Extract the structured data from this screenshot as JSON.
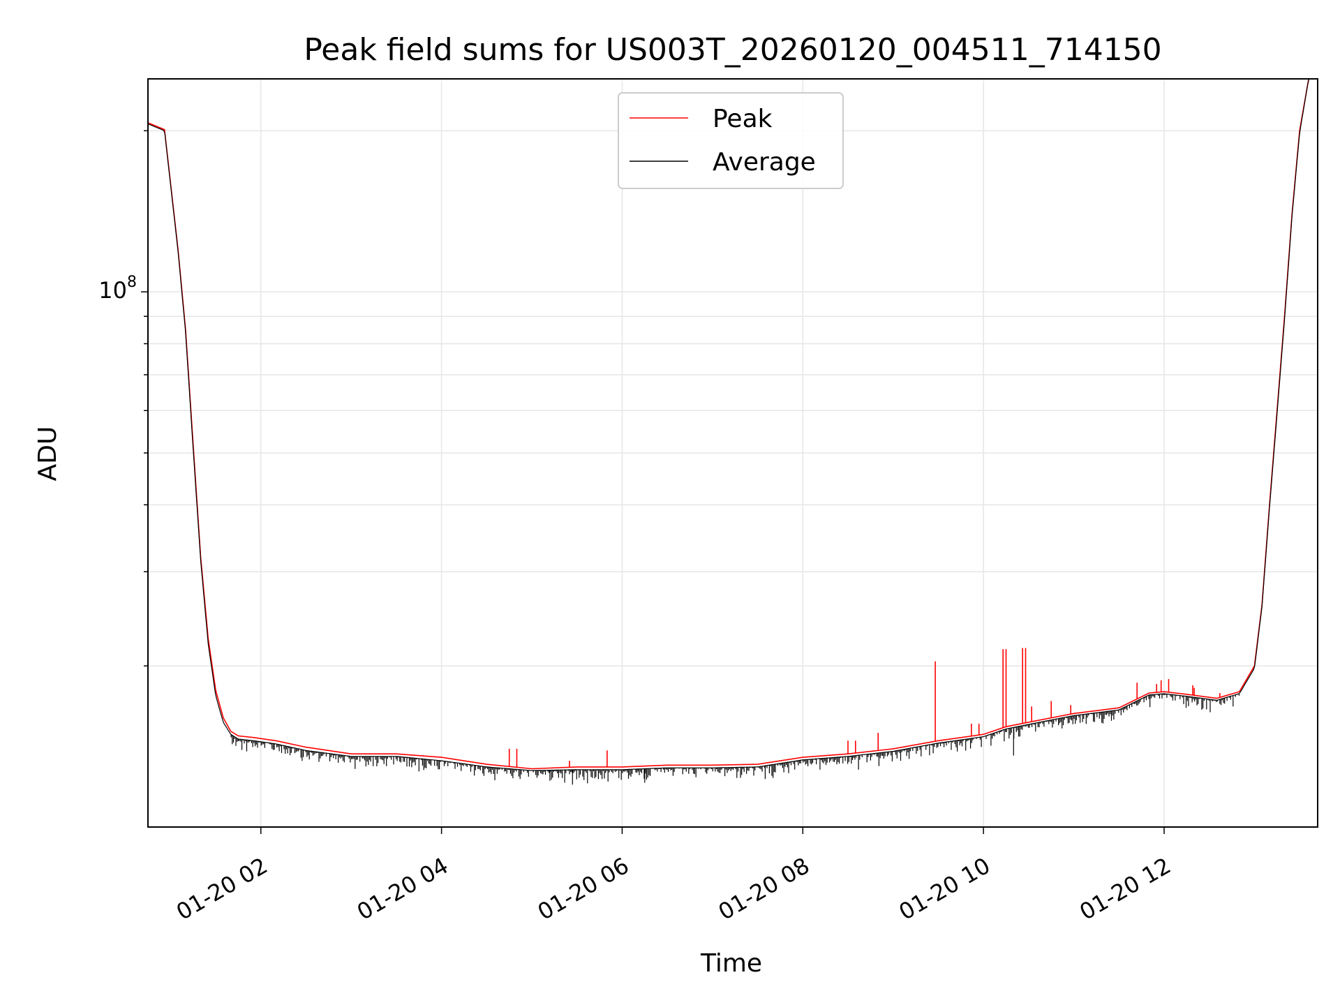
{
  "chart_data": {
    "type": "line",
    "title": "Peak field sums for US003T_20260120_004511_714150",
    "xlabel": "Time",
    "ylabel": "ADU",
    "x_scale": "time",
    "y_scale": "log",
    "xlim": [
      "2026-01-20 00:45",
      "2026-01-20 13:42"
    ],
    "ylim": [
      10000000,
      250000000
    ],
    "x_ticks": [
      "2026-01-20 02:00",
      "2026-01-20 04:00",
      "2026-01-20 06:00",
      "2026-01-20 08:00",
      "2026-01-20 10:00",
      "2026-01-20 12:00"
    ],
    "x_tick_labels": [
      "01-20 02",
      "01-20 04",
      "01-20 06",
      "01-20 08",
      "01-20 10",
      "01-20 12"
    ],
    "y_major_ticks": [
      100000000
    ],
    "y_major_tick_label": {
      "base": "10",
      "exponent": "8"
    },
    "y_minor_ticks": [
      20000000,
      30000000,
      40000000,
      50000000,
      60000000,
      70000000,
      80000000,
      90000000,
      200000000
    ],
    "grid": true,
    "legend_position": "upper center",
    "series": [
      {
        "name": "Peak",
        "color": "#ff0000",
        "x": [
          "2026-01-20 00:45",
          "2026-01-20 00:56",
          "2026-01-20 01:05",
          "2026-01-20 01:10",
          "2026-01-20 01:15",
          "2026-01-20 01:20",
          "2026-01-20 01:25",
          "2026-01-20 01:30",
          "2026-01-20 01:35",
          "2026-01-20 01:40",
          "2026-01-20 01:45",
          "2026-01-20 01:55",
          "2026-01-20 02:10",
          "2026-01-20 02:30",
          "2026-01-20 03:00",
          "2026-01-20 03:30",
          "2026-01-20 04:00",
          "2026-01-20 04:30",
          "2026-01-20 05:00",
          "2026-01-20 05:30",
          "2026-01-20 06:00",
          "2026-01-20 06:30",
          "2026-01-20 07:00",
          "2026-01-20 07:30",
          "2026-01-20 08:00",
          "2026-01-20 08:30",
          "2026-01-20 09:00",
          "2026-01-20 09:30",
          "2026-01-20 10:00",
          "2026-01-20 10:15",
          "2026-01-20 10:30",
          "2026-01-20 11:00",
          "2026-01-20 11:30",
          "2026-01-20 11:50",
          "2026-01-20 12:00",
          "2026-01-20 12:15",
          "2026-01-20 12:35",
          "2026-01-20 12:50",
          "2026-01-20 13:00",
          "2026-01-20 13:05",
          "2026-01-20 13:10",
          "2026-01-20 13:15",
          "2026-01-20 13:20",
          "2026-01-20 13:25",
          "2026-01-20 13:30",
          "2026-01-20 13:36",
          "2026-01-20 13:42"
        ],
        "values": [
          207000000,
          201000000,
          120000000,
          85000000,
          52000000,
          32000000,
          22500000,
          18000000,
          16000000,
          15100000,
          14800000,
          14700000,
          14500000,
          14100000,
          13700000,
          13700000,
          13500000,
          13100000,
          12850000,
          12950000,
          12950000,
          13050000,
          13050000,
          13100000,
          13500000,
          13700000,
          14000000,
          14500000,
          14900000,
          15400000,
          15700000,
          16300000,
          16700000,
          17800000,
          17900000,
          17700000,
          17400000,
          17900000,
          20000000,
          26000000,
          40000000,
          60000000,
          90000000,
          140000000,
          200000000,
          250000000,
          250000000
        ],
        "spikes": [
          {
            "x": "2026-01-20 04:45",
            "value": 14000000
          },
          {
            "x": "2026-01-20 04:50",
            "value": 14000000
          },
          {
            "x": "2026-01-20 05:25",
            "value": 13300000
          },
          {
            "x": "2026-01-20 05:50",
            "value": 13900000
          },
          {
            "x": "2026-01-20 08:30",
            "value": 14500000
          },
          {
            "x": "2026-01-20 08:35",
            "value": 14500000
          },
          {
            "x": "2026-01-20 08:50",
            "value": 15000000
          },
          {
            "x": "2026-01-20 09:28",
            "value": 20400000
          },
          {
            "x": "2026-01-20 09:52",
            "value": 15600000
          },
          {
            "x": "2026-01-20 09:57",
            "value": 15600000
          },
          {
            "x": "2026-01-20 10:13",
            "value": 21500000
          },
          {
            "x": "2026-01-20 10:15",
            "value": 21500000
          },
          {
            "x": "2026-01-20 10:26",
            "value": 21600000
          },
          {
            "x": "2026-01-20 10:28",
            "value": 21600000
          },
          {
            "x": "2026-01-20 10:32",
            "value": 16800000
          },
          {
            "x": "2026-01-20 10:45",
            "value": 17200000
          },
          {
            "x": "2026-01-20 10:58",
            "value": 16900000
          },
          {
            "x": "2026-01-20 11:42",
            "value": 18600000
          },
          {
            "x": "2026-01-20 11:55",
            "value": 18500000
          },
          {
            "x": "2026-01-20 11:58",
            "value": 18800000
          },
          {
            "x": "2026-01-20 12:03",
            "value": 18900000
          },
          {
            "x": "2026-01-20 12:19",
            "value": 18400000
          },
          {
            "x": "2026-01-20 12:20",
            "value": 18200000
          },
          {
            "x": "2026-01-20 12:37",
            "value": 17800000
          }
        ]
      },
      {
        "name": "Average",
        "color": "#000000",
        "x": [
          "2026-01-20 00:45",
          "2026-01-20 00:56",
          "2026-01-20 01:05",
          "2026-01-20 01:10",
          "2026-01-20 01:15",
          "2026-01-20 01:20",
          "2026-01-20 01:25",
          "2026-01-20 01:30",
          "2026-01-20 01:35",
          "2026-01-20 01:40",
          "2026-01-20 01:45",
          "2026-01-20 01:55",
          "2026-01-20 02:10",
          "2026-01-20 02:30",
          "2026-01-20 03:00",
          "2026-01-20 03:30",
          "2026-01-20 04:00",
          "2026-01-20 04:30",
          "2026-01-20 05:00",
          "2026-01-20 05:30",
          "2026-01-20 06:00",
          "2026-01-20 06:30",
          "2026-01-20 07:00",
          "2026-01-20 07:30",
          "2026-01-20 08:00",
          "2026-01-20 08:30",
          "2026-01-20 09:00",
          "2026-01-20 09:30",
          "2026-01-20 10:00",
          "2026-01-20 10:15",
          "2026-01-20 10:30",
          "2026-01-20 11:00",
          "2026-01-20 11:30",
          "2026-01-20 11:50",
          "2026-01-20 12:00",
          "2026-01-20 12:15",
          "2026-01-20 12:35",
          "2026-01-20 12:50",
          "2026-01-20 13:00",
          "2026-01-20 13:05",
          "2026-01-20 13:10",
          "2026-01-20 13:15",
          "2026-01-20 13:20",
          "2026-01-20 13:25",
          "2026-01-20 13:30",
          "2026-01-20 13:36",
          "2026-01-20 13:42"
        ],
        "values": [
          206000000,
          200000000,
          119000000,
          84000000,
          51000000,
          31500000,
          22000000,
          17600000,
          15700000,
          14900000,
          14600000,
          14500000,
          14300000,
          13900000,
          13550000,
          13550000,
          13300000,
          12950000,
          12750000,
          12800000,
          12800000,
          12900000,
          12900000,
          12950000,
          13350000,
          13550000,
          13850000,
          14350000,
          14750000,
          15250000,
          15550000,
          16150000,
          16550000,
          17650000,
          17750000,
          17550000,
          17250000,
          17750000,
          19800000,
          25800000,
          39500000,
          59000000,
          89000000,
          139000000,
          198000000,
          250000000,
          250000000
        ],
        "dips": [
          {
            "x": "2026-01-20 03:45",
            "value": 12700000
          },
          {
            "x": "2026-01-20 05:12",
            "value": 12200000
          },
          {
            "x": "2026-01-20 05:27",
            "value": 12000000
          },
          {
            "x": "2026-01-20 06:15",
            "value": 12100000
          },
          {
            "x": "2026-01-20 07:35",
            "value": 12300000
          },
          {
            "x": "2026-01-20 08:37",
            "value": 12800000
          },
          {
            "x": "2026-01-20 10:20",
            "value": 13600000
          },
          {
            "x": "2026-01-20 11:25",
            "value": 15800000
          }
        ]
      }
    ]
  }
}
